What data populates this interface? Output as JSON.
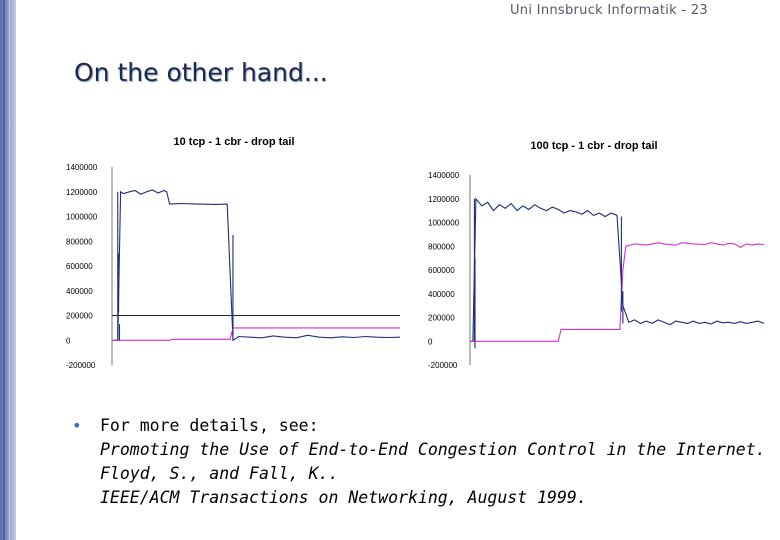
{
  "header": "Uni Innsbruck Informatik - 23",
  "title": "On the other hand...",
  "bullet": {
    "lead": "For more details, see:",
    "lines": [
      "Promoting the Use of End-to-End Congestion Control in the Internet.",
      "Floyd, S., and Fall, K..",
      "IEEE/ACM Transactions on Networking, August 1999."
    ]
  },
  "chart_data": [
    {
      "type": "line",
      "title": "10 tcp - 1 cbr - drop tail",
      "ylim": [
        -200000,
        1400000
      ],
      "yticks": [
        "1400000",
        "1200000",
        "1000000",
        "800000",
        "600000",
        "400000",
        "200000",
        "0",
        "-200000"
      ],
      "ytick_values": [
        1400000,
        1200000,
        1000000,
        800000,
        600000,
        400000,
        200000,
        0,
        -200000
      ],
      "reference_line": 200000,
      "series": [
        {
          "color": "#1f2d7a",
          "points": [
            [
              0,
              0
            ],
            [
              2,
              0
            ],
            [
              3,
              1200000
            ],
            [
              4,
              1185000
            ],
            [
              6,
              1200000
            ],
            [
              8,
              1210000
            ],
            [
              10,
              1180000
            ],
            [
              12,
              1200000
            ],
            [
              14,
              1215000
            ],
            [
              16,
              1190000
            ],
            [
              18,
              1210000
            ],
            [
              19,
              1200000
            ],
            [
              20,
              1100000
            ],
            [
              24,
              1105000
            ],
            [
              30,
              1100000
            ],
            [
              36,
              1098000
            ],
            [
              40,
              1100000
            ],
            [
              42,
              0
            ],
            [
              44,
              30000
            ],
            [
              48,
              25000
            ],
            [
              52,
              20000
            ],
            [
              56,
              35000
            ],
            [
              60,
              25000
            ],
            [
              64,
              20000
            ],
            [
              68,
              40000
            ],
            [
              72,
              25000
            ],
            [
              76,
              20000
            ],
            [
              80,
              28000
            ],
            [
              84,
              22000
            ],
            [
              88,
              30000
            ],
            [
              92,
              25000
            ],
            [
              96,
              22000
            ],
            [
              100,
              25000
            ]
          ]
        },
        {
          "color": "#d62fd4",
          "points": [
            [
              0,
              0
            ],
            [
              20,
              0
            ],
            [
              21,
              8000
            ],
            [
              41,
              8000
            ],
            [
              42,
              100000
            ],
            [
              100,
              100000
            ]
          ]
        }
      ],
      "spikes": [
        {
          "x": 2,
          "from": 1200000,
          "to": 0
        },
        {
          "x": 2.3,
          "from": 700000,
          "to": 230000
        },
        {
          "x": 2.6,
          "from": 130000,
          "to": 0
        },
        {
          "x": 42,
          "from": 850000,
          "to": 0
        }
      ]
    },
    {
      "type": "line",
      "title": "100 tcp - 1 cbr - drop tail",
      "ylim": [
        -200000,
        1400000
      ],
      "yticks": [
        "1400000",
        "1200000",
        "1000000",
        "800000",
        "600000",
        "400000",
        "200000",
        "0",
        "-200000"
      ],
      "ytick_values": [
        1400000,
        1200000,
        1000000,
        800000,
        600000,
        400000,
        200000,
        0,
        -200000
      ],
      "series": [
        {
          "color": "#1f2d7a",
          "points": [
            [
              0,
              0
            ],
            [
              1,
              0
            ],
            [
              2,
              1200000
            ],
            [
              4,
              1140000
            ],
            [
              6,
              1170000
            ],
            [
              8,
              1100000
            ],
            [
              10,
              1150000
            ],
            [
              12,
              1120000
            ],
            [
              14,
              1160000
            ],
            [
              16,
              1100000
            ],
            [
              18,
              1140000
            ],
            [
              20,
              1110000
            ],
            [
              22,
              1150000
            ],
            [
              24,
              1120000
            ],
            [
              26,
              1100000
            ],
            [
              28,
              1130000
            ],
            [
              30,
              1110000
            ],
            [
              32,
              1080000
            ],
            [
              34,
              1100000
            ],
            [
              36,
              1090000
            ],
            [
              38,
              1070000
            ],
            [
              40,
              1100000
            ],
            [
              42,
              1060000
            ],
            [
              44,
              1080000
            ],
            [
              46,
              1050000
            ],
            [
              48,
              1080000
            ],
            [
              50,
              1060000
            ],
            [
              52,
              300000
            ],
            [
              54,
              160000
            ],
            [
              56,
              180000
            ],
            [
              58,
              150000
            ],
            [
              60,
              170000
            ],
            [
              62,
              150000
            ],
            [
              64,
              180000
            ],
            [
              66,
              160000
            ],
            [
              68,
              140000
            ],
            [
              70,
              170000
            ],
            [
              72,
              160000
            ],
            [
              74,
              150000
            ],
            [
              76,
              170000
            ],
            [
              78,
              150000
            ],
            [
              80,
              160000
            ],
            [
              82,
              145000
            ],
            [
              84,
              170000
            ],
            [
              86,
              155000
            ],
            [
              88,
              160000
            ],
            [
              90,
              150000
            ],
            [
              92,
              165000
            ],
            [
              94,
              150000
            ],
            [
              96,
              160000
            ],
            [
              98,
              170000
            ],
            [
              100,
              150000
            ]
          ]
        },
        {
          "color": "#d62fd4",
          "points": [
            [
              0,
              0
            ],
            [
              30,
              0
            ],
            [
              31,
              100000
            ],
            [
              51,
              100000
            ],
            [
              52,
              600000
            ],
            [
              53,
              800000
            ],
            [
              56,
              820000
            ],
            [
              60,
              810000
            ],
            [
              64,
              830000
            ],
            [
              66,
              820000
            ],
            [
              70,
              810000
            ],
            [
              72,
              830000
            ],
            [
              76,
              820000
            ],
            [
              80,
              815000
            ],
            [
              82,
              830000
            ],
            [
              86,
              810000
            ],
            [
              88,
              825000
            ],
            [
              90,
              820000
            ],
            [
              92,
              790000
            ],
            [
              94,
              820000
            ],
            [
              96,
              810000
            ],
            [
              98,
              820000
            ],
            [
              100,
              815000
            ]
          ]
        }
      ],
      "spikes": [
        {
          "x": 1.5,
          "from": 1200000,
          "to": 0
        },
        {
          "x": 1.7,
          "from": 700000,
          "to": -60000
        },
        {
          "x": 51.5,
          "from": 1050000,
          "to": 250000
        },
        {
          "x": 52,
          "from": 420000,
          "to": 150000
        }
      ]
    }
  ]
}
